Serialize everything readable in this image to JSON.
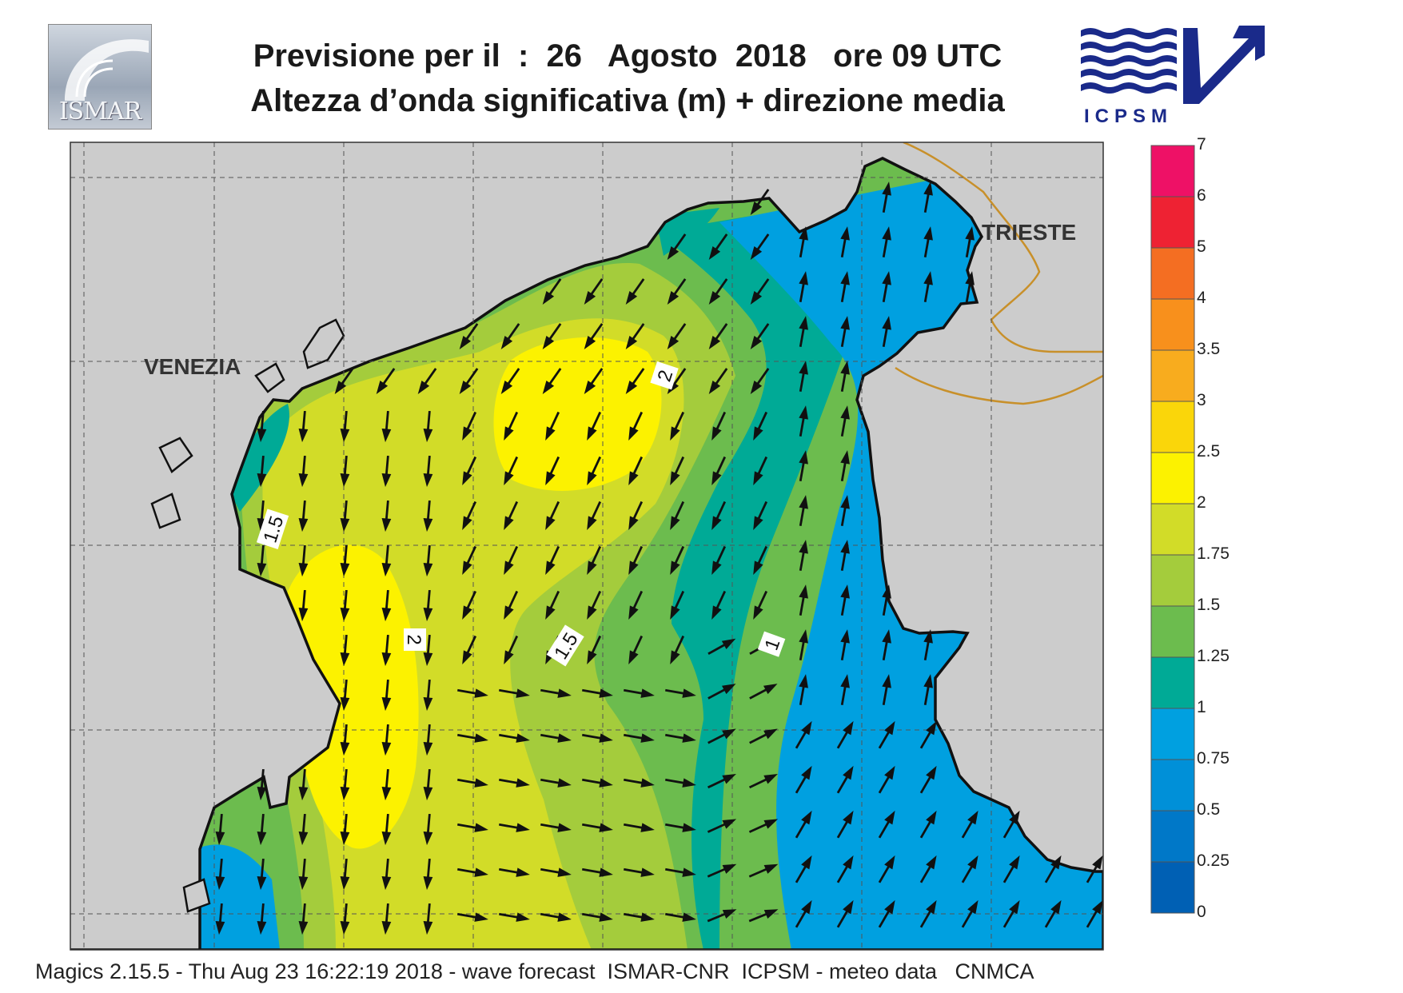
{
  "header": {
    "title_line1": "Previsione per il  :  26   Agosto  2018   ore 09 UTC",
    "title_line2": "Altezza d’onda significativa (m) + direzione media"
  },
  "logos": {
    "left": {
      "text": "ISMAR"
    },
    "right": {
      "text": "ICPSM"
    }
  },
  "map": {
    "cities": [
      {
        "name": "VENEZIA"
      },
      {
        "name": "TRIESTE"
      }
    ],
    "contour_labels": [
      "1.5",
      "2",
      "2",
      "1.5",
      "1"
    ],
    "land_color": "#cccccc",
    "coast_color": "#111111",
    "border_color": "#c8902a"
  },
  "legend": {
    "ticks": [
      "7",
      "6",
      "5",
      "4",
      "3.5",
      "3",
      "2.5",
      "2",
      "1.75",
      "1.5",
      "1.25",
      "1",
      "0.75",
      "0.5",
      "0.25",
      "0"
    ],
    "colors": [
      "#ee1166",
      "#ee2233",
      "#f46e22",
      "#f8901c",
      "#f8ac1e",
      "#fad60a",
      "#fcf200",
      "#d2dc28",
      "#a4cc3c",
      "#6cbc4e",
      "#00aa96",
      "#00a0e0",
      "#0090d8",
      "#0078c8",
      "#0060b4"
    ]
  },
  "footer": {
    "text": "Magics 2.15.5 - Thu Aug 23 16:22:19 2018 - wave forecast  ISMAR-CNR  ICPSM - meteo data   CNMCA"
  }
}
